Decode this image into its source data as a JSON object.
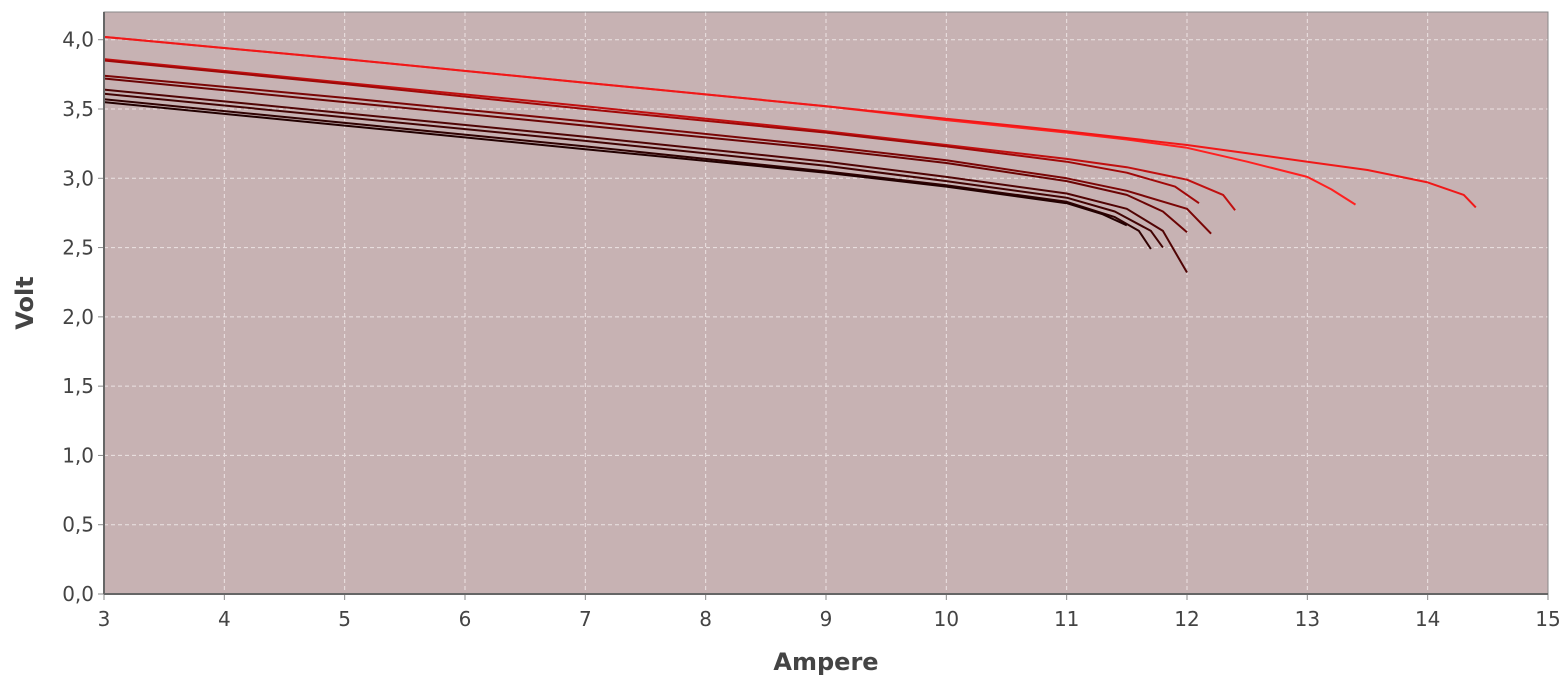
{
  "chart_data": {
    "type": "line",
    "title": "",
    "xlabel": "Ampere",
    "ylabel": "Volt",
    "xlim": [
      3,
      15
    ],
    "ylim": [
      0,
      4.2
    ],
    "x_ticks": [
      "3",
      "4",
      "5",
      "6",
      "7",
      "8",
      "9",
      "10",
      "11",
      "12",
      "13",
      "14",
      "15"
    ],
    "y_ticks": [
      "0,0",
      "0,5",
      "1,0",
      "1,5",
      "2,0",
      "2,5",
      "3,0",
      "3,5",
      "4,0"
    ],
    "grid": true,
    "legend": "none",
    "colors": {
      "plot_background": "#c7b2b3",
      "grid": "#ece3e3",
      "axis": "#888888",
      "text": "#444444"
    },
    "series": [
      {
        "color": "#ff2020",
        "x": [
          3,
          5,
          7,
          9,
          10,
          11,
          11.5,
          12,
          12.5,
          13,
          13.2,
          13.4
        ],
        "y": [
          4.02,
          3.86,
          3.69,
          3.52,
          3.42,
          3.33,
          3.28,
          3.22,
          3.12,
          3.01,
          2.92,
          2.81
        ]
      },
      {
        "color": "#f01818",
        "x": [
          3,
          5,
          7,
          9,
          10,
          11,
          12,
          12.5,
          13,
          13.5,
          14,
          14.3,
          14.4
        ],
        "y": [
          4.02,
          3.86,
          3.69,
          3.52,
          3.43,
          3.34,
          3.24,
          3.18,
          3.12,
          3.06,
          2.97,
          2.88,
          2.79
        ]
      },
      {
        "color": "#c01010",
        "x": [
          3,
          5,
          7,
          9,
          10,
          11,
          11.5,
          12,
          12.3,
          12.4
        ],
        "y": [
          3.86,
          3.69,
          3.52,
          3.34,
          3.24,
          3.14,
          3.08,
          2.99,
          2.88,
          2.77
        ]
      },
      {
        "color": "#a00808",
        "x": [
          3,
          5,
          7,
          9,
          10,
          11,
          11.5,
          11.9,
          12.1
        ],
        "y": [
          3.85,
          3.68,
          3.5,
          3.33,
          3.23,
          3.12,
          3.04,
          2.94,
          2.82
        ]
      },
      {
        "color": "#7a0606",
        "x": [
          3,
          5,
          7,
          9,
          10,
          11,
          11.5,
          12,
          12.2
        ],
        "y": [
          3.74,
          3.58,
          3.41,
          3.23,
          3.13,
          3.0,
          2.91,
          2.78,
          2.6
        ]
      },
      {
        "color": "#6a0404",
        "x": [
          3,
          5,
          7,
          9,
          10,
          11,
          11.5,
          11.8,
          12.0
        ],
        "y": [
          3.72,
          3.55,
          3.38,
          3.21,
          3.11,
          2.98,
          2.88,
          2.76,
          2.61
        ]
      },
      {
        "color": "#500404",
        "x": [
          3,
          5,
          7,
          9,
          10,
          11,
          11.5,
          11.8,
          12.0
        ],
        "y": [
          3.64,
          3.47,
          3.3,
          3.12,
          3.01,
          2.89,
          2.78,
          2.62,
          2.32
        ]
      },
      {
        "color": "#420303",
        "x": [
          3,
          5,
          7,
          9,
          10,
          11,
          11.4,
          11.7,
          11.8
        ],
        "y": [
          3.61,
          3.44,
          3.27,
          3.09,
          2.98,
          2.86,
          2.76,
          2.62,
          2.5
        ]
      },
      {
        "color": "#300202",
        "x": [
          3,
          5,
          7,
          9,
          10,
          11,
          11.4,
          11.6,
          11.7
        ],
        "y": [
          3.57,
          3.4,
          3.23,
          3.05,
          2.95,
          2.83,
          2.72,
          2.62,
          2.49
        ]
      },
      {
        "color": "#220101",
        "x": [
          3,
          5,
          7,
          9,
          10,
          11,
          11.3,
          11.5
        ],
        "y": [
          3.55,
          3.38,
          3.21,
          3.04,
          2.94,
          2.82,
          2.74,
          2.66
        ]
      }
    ]
  }
}
